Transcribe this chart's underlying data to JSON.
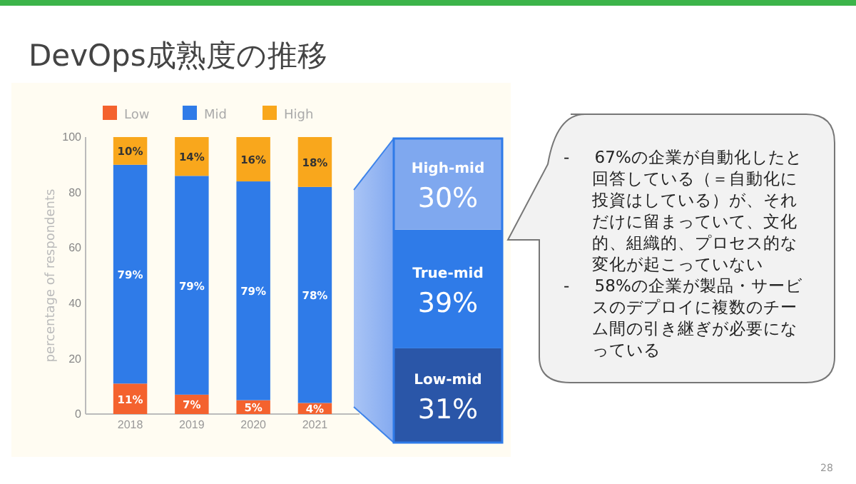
{
  "chart_data": [
    {
      "type": "bar",
      "title": "DevOps成熟度の推移",
      "ylabel": "percentage of respondents",
      "categories": [
        "2018",
        "2019",
        "2020",
        "2021"
      ],
      "stacked": true,
      "ylim": [
        0,
        100
      ],
      "yticks": [
        0,
        20,
        40,
        60,
        80,
        100
      ],
      "legend": "top",
      "series": [
        {
          "name": "Low",
          "color": "#f4622e",
          "values": [
            11,
            7,
            5,
            4
          ],
          "value_labels": [
            "11%",
            "7%",
            "5%",
            "4%"
          ]
        },
        {
          "name": "Mid",
          "color": "#2f7be8",
          "values": [
            79,
            79,
            79,
            78
          ],
          "value_labels": [
            "79%",
            "79%",
            "79%",
            "78%"
          ]
        },
        {
          "name": "High",
          "color": "#f9a71c",
          "values": [
            10,
            14,
            16,
            18
          ],
          "value_labels": [
            "10%",
            "14%",
            "16%",
            "18%"
          ]
        }
      ],
      "annotations": [
        "- 67%の企業が自動化したと回答している（＝自動化に投資はしている）が、それだけに留まっていて、文化的、組織的、プロセス的な変化が起こっていない",
        "- 58%の企業が製品・サービスのデプロイに複数のチーム間の引き継ぎが必要になっている",
        "28"
      ]
    },
    {
      "type": "other",
      "categories": [
        "Low-mid",
        "True-mid",
        "High-mid"
      ],
      "values": [
        31,
        39,
        30
      ],
      "value_labels": [
        "31%",
        "39%",
        "30%"
      ],
      "colors": [
        "#2a56a8",
        "#2f7be8",
        "#7fa8ef"
      ]
    }
  ]
}
